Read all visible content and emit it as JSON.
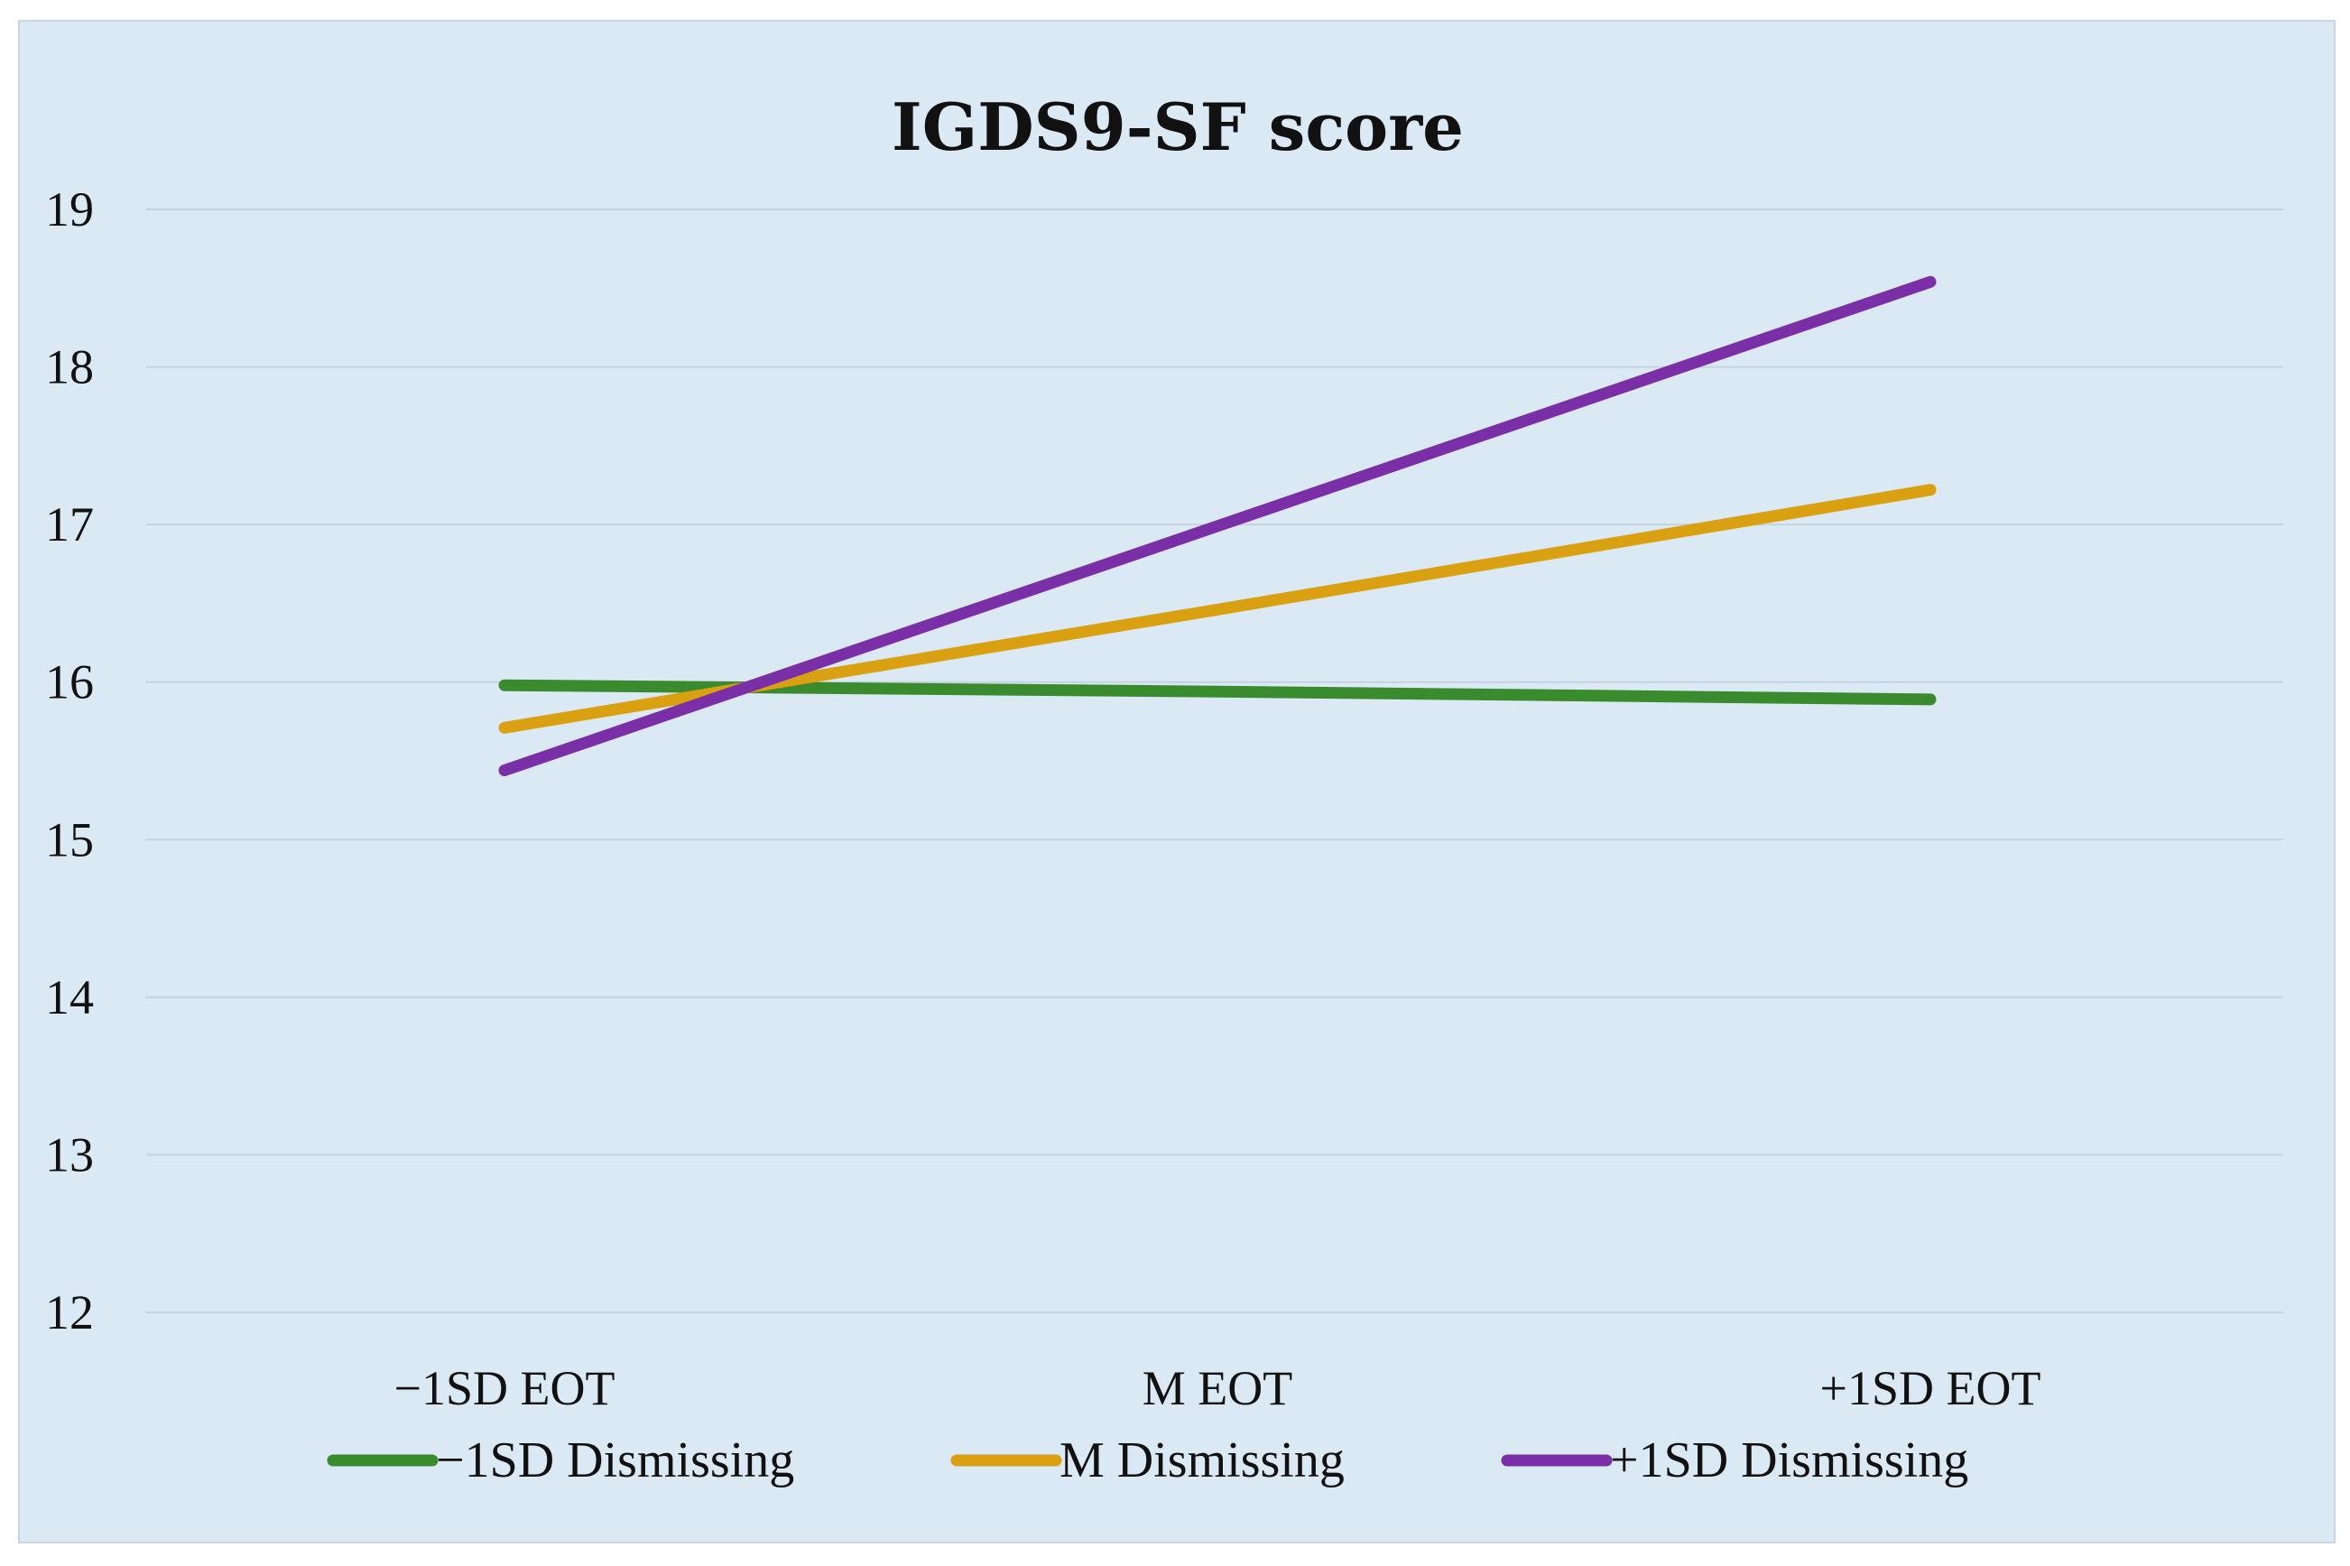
{
  "chart_data": {
    "type": "line",
    "title": "IGDS9-SF score",
    "xlabel": "",
    "ylabel": "",
    "categories": [
      "−1SD EOT",
      "M EOT",
      "+1SD EOT"
    ],
    "ylim": [
      12,
      19
    ],
    "yticks": [
      12,
      13,
      14,
      15,
      16,
      17,
      18,
      19
    ],
    "grid": true,
    "legend_position": "bottom",
    "series": [
      {
        "name": "−1SD Dismissing",
        "color": "#3a8a2e",
        "values": [
          15.98,
          15.94,
          15.89
        ]
      },
      {
        "name": "M Dismissing",
        "color": "#d9a011",
        "values": [
          15.71,
          16.46,
          17.22
        ]
      },
      {
        "name": "+1SD Dismissing",
        "color": "#7b2fa6",
        "values": [
          15.44,
          16.99,
          18.54
        ]
      }
    ]
  }
}
